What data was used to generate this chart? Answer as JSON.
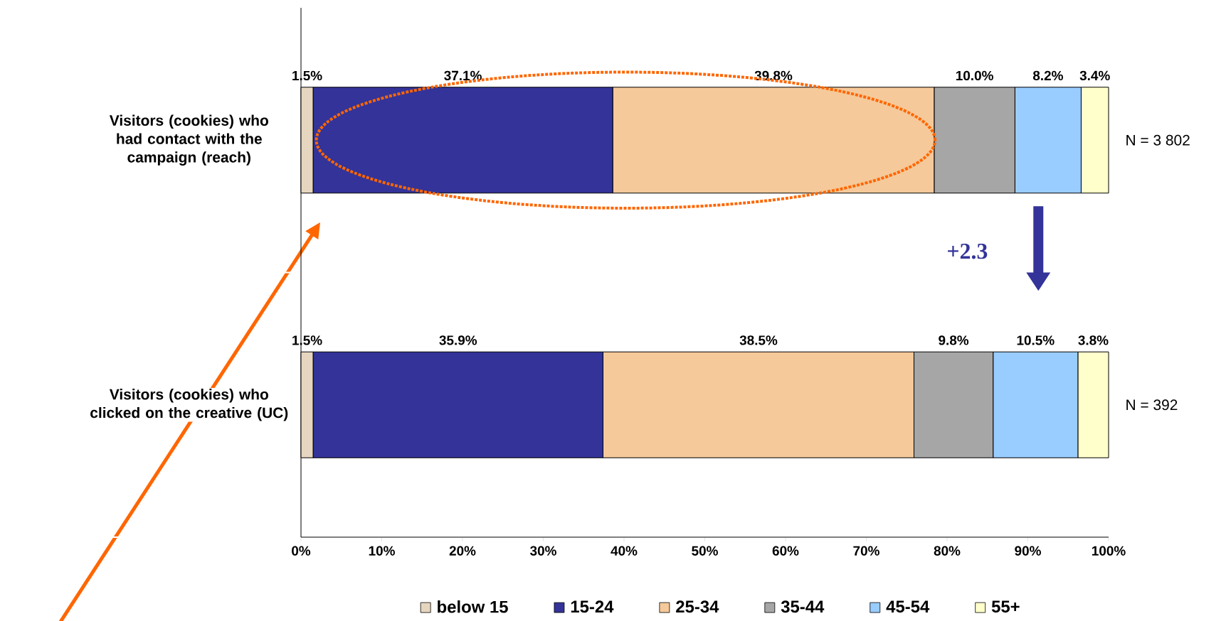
{
  "chart_data": {
    "type": "bar",
    "orientation": "horizontal",
    "stacked": true,
    "categories": [
      "Visitors (cookies) who had contact with the campaign (reach)",
      "Visitors (cookies) who clicked on the creative (UC)"
    ],
    "series": [
      {
        "name": "below 15",
        "color": "#e6d6bf",
        "values": [
          1.5,
          1.5
        ],
        "value_labels": [
          "1.5%",
          "1.5%"
        ]
      },
      {
        "name": "15-24",
        "color": "#333399",
        "values": [
          37.1,
          35.9
        ],
        "value_labels": [
          "37.1%",
          "35.9%"
        ]
      },
      {
        "name": "25-34",
        "color": "#f5c99a",
        "values": [
          39.8,
          38.5
        ],
        "value_labels": [
          "39.8%",
          "38.5%"
        ]
      },
      {
        "name": "35-44",
        "color": "#a6a6a6",
        "values": [
          10.0,
          9.8
        ],
        "value_labels": [
          "10.0%",
          "9.8%"
        ]
      },
      {
        "name": "45-54",
        "color": "#99ccff",
        "values": [
          8.2,
          10.5
        ],
        "value_labels": [
          "8.2%",
          "10.5%"
        ]
      },
      {
        "name": "55+",
        "color": "#ffffcc",
        "values": [
          3.4,
          3.8
        ],
        "value_labels": [
          "3.4%",
          "3.8%"
        ]
      }
    ],
    "xlim": [
      0,
      100
    ],
    "xticks": [
      {
        "value": 0,
        "label": "0%"
      },
      {
        "value": 10,
        "label": "10%"
      },
      {
        "value": 20,
        "label": "20%"
      },
      {
        "value": 30,
        "label": "30%"
      },
      {
        "value": 40,
        "label": "40%"
      },
      {
        "value": 50,
        "label": "50%"
      },
      {
        "value": 60,
        "label": "60%"
      },
      {
        "value": 70,
        "label": "70%"
      },
      {
        "value": 80,
        "label": "80%"
      },
      {
        "value": 90,
        "label": "90%"
      },
      {
        "value": 100,
        "label": "100%"
      }
    ],
    "legend": "bottom",
    "annotations": [
      "N = 3 802",
      "N = 392",
      "+2.3"
    ]
  }
}
